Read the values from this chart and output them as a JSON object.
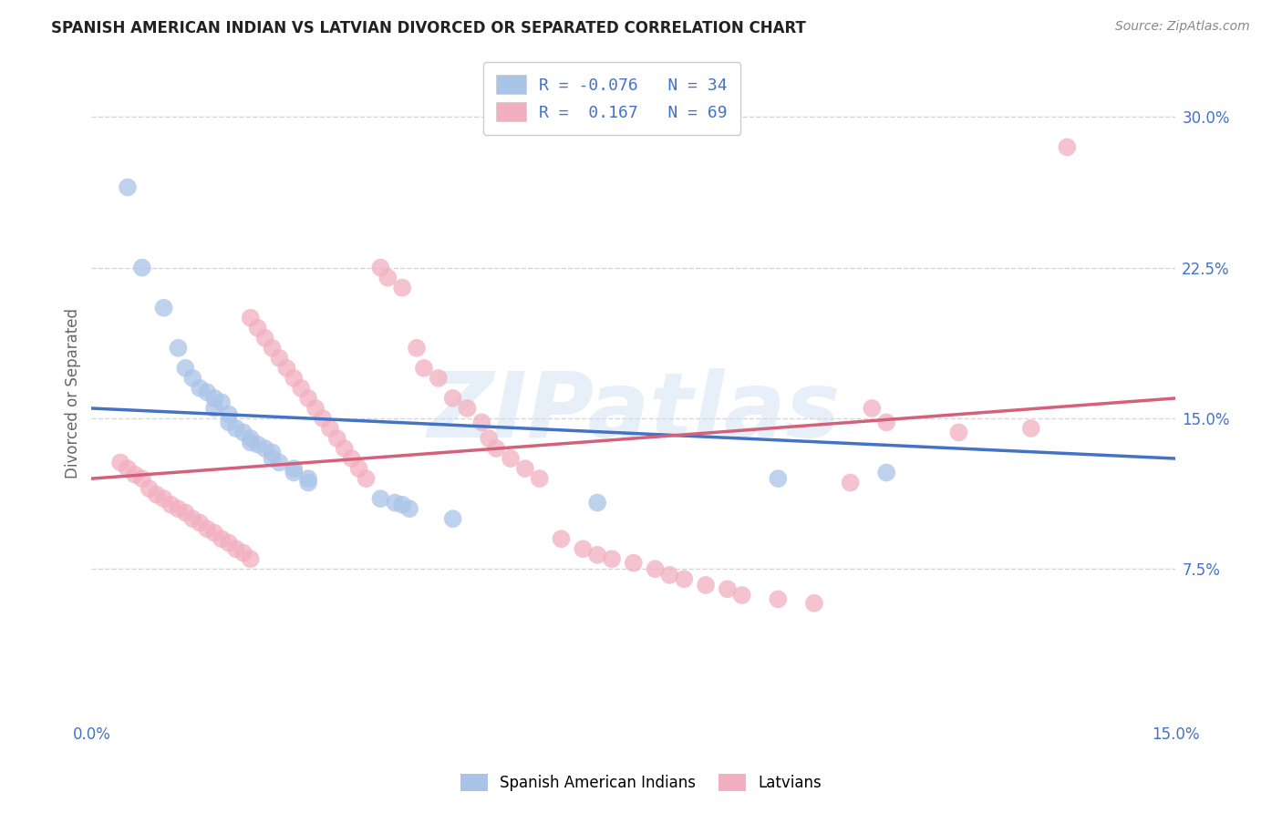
{
  "title": "SPANISH AMERICAN INDIAN VS LATVIAN DIVORCED OR SEPARATED CORRELATION CHART",
  "source": "Source: ZipAtlas.com",
  "ylabel": "Divorced or Separated",
  "watermark": "ZIPatlas",
  "legend_blue_label": "Spanish American Indians",
  "legend_pink_label": "Latvians",
  "R_blue": -0.076,
  "N_blue": 34,
  "R_pink": 0.167,
  "N_pink": 69,
  "blue_color": "#aac4e8",
  "pink_color": "#f2afc0",
  "blue_line_color": "#4472c4",
  "pink_line_color": "#d4607a",
  "blue_scatter": [
    [
      0.005,
      0.265
    ],
    [
      0.007,
      0.225
    ],
    [
      0.01,
      0.205
    ],
    [
      0.012,
      0.185
    ],
    [
      0.013,
      0.175
    ],
    [
      0.014,
      0.17
    ],
    [
      0.015,
      0.165
    ],
    [
      0.016,
      0.163
    ],
    [
      0.017,
      0.16
    ],
    [
      0.017,
      0.155
    ],
    [
      0.018,
      0.158
    ],
    [
      0.019,
      0.152
    ],
    [
      0.019,
      0.148
    ],
    [
      0.02,
      0.145
    ],
    [
      0.021,
      0.143
    ],
    [
      0.022,
      0.14
    ],
    [
      0.022,
      0.138
    ],
    [
      0.023,
      0.137
    ],
    [
      0.024,
      0.135
    ],
    [
      0.025,
      0.133
    ],
    [
      0.025,
      0.13
    ],
    [
      0.026,
      0.128
    ],
    [
      0.028,
      0.125
    ],
    [
      0.028,
      0.123
    ],
    [
      0.03,
      0.12
    ],
    [
      0.03,
      0.118
    ],
    [
      0.04,
      0.11
    ],
    [
      0.042,
      0.108
    ],
    [
      0.043,
      0.107
    ],
    [
      0.044,
      0.105
    ],
    [
      0.05,
      0.1
    ],
    [
      0.07,
      0.108
    ],
    [
      0.095,
      0.12
    ],
    [
      0.11,
      0.123
    ]
  ],
  "pink_scatter": [
    [
      0.004,
      0.128
    ],
    [
      0.005,
      0.125
    ],
    [
      0.006,
      0.122
    ],
    [
      0.007,
      0.12
    ],
    [
      0.008,
      0.115
    ],
    [
      0.009,
      0.112
    ],
    [
      0.01,
      0.11
    ],
    [
      0.011,
      0.107
    ],
    [
      0.012,
      0.105
    ],
    [
      0.013,
      0.103
    ],
    [
      0.014,
      0.1
    ],
    [
      0.015,
      0.098
    ],
    [
      0.016,
      0.095
    ],
    [
      0.017,
      0.093
    ],
    [
      0.018,
      0.09
    ],
    [
      0.019,
      0.088
    ],
    [
      0.02,
      0.085
    ],
    [
      0.021,
      0.083
    ],
    [
      0.022,
      0.08
    ],
    [
      0.022,
      0.2
    ],
    [
      0.023,
      0.195
    ],
    [
      0.024,
      0.19
    ],
    [
      0.025,
      0.185
    ],
    [
      0.026,
      0.18
    ],
    [
      0.027,
      0.175
    ],
    [
      0.028,
      0.17
    ],
    [
      0.029,
      0.165
    ],
    [
      0.03,
      0.16
    ],
    [
      0.031,
      0.155
    ],
    [
      0.032,
      0.15
    ],
    [
      0.033,
      0.145
    ],
    [
      0.034,
      0.14
    ],
    [
      0.035,
      0.135
    ],
    [
      0.036,
      0.13
    ],
    [
      0.037,
      0.125
    ],
    [
      0.038,
      0.12
    ],
    [
      0.04,
      0.225
    ],
    [
      0.041,
      0.22
    ],
    [
      0.043,
      0.215
    ],
    [
      0.045,
      0.185
    ],
    [
      0.046,
      0.175
    ],
    [
      0.048,
      0.17
    ],
    [
      0.05,
      0.16
    ],
    [
      0.052,
      0.155
    ],
    [
      0.054,
      0.148
    ],
    [
      0.055,
      0.14
    ],
    [
      0.056,
      0.135
    ],
    [
      0.058,
      0.13
    ],
    [
      0.06,
      0.125
    ],
    [
      0.062,
      0.12
    ],
    [
      0.065,
      0.09
    ],
    [
      0.068,
      0.085
    ],
    [
      0.07,
      0.082
    ],
    [
      0.072,
      0.08
    ],
    [
      0.075,
      0.078
    ],
    [
      0.078,
      0.075
    ],
    [
      0.08,
      0.072
    ],
    [
      0.082,
      0.07
    ],
    [
      0.085,
      0.067
    ],
    [
      0.088,
      0.065
    ],
    [
      0.09,
      0.062
    ],
    [
      0.095,
      0.06
    ],
    [
      0.1,
      0.058
    ],
    [
      0.105,
      0.118
    ],
    [
      0.108,
      0.155
    ],
    [
      0.11,
      0.148
    ],
    [
      0.12,
      0.143
    ],
    [
      0.13,
      0.145
    ],
    [
      0.135,
      0.285
    ]
  ],
  "xmin": 0.0,
  "xmax": 0.15,
  "ymin": 0.0,
  "ymax": 0.325,
  "yticks": [
    0.075,
    0.15,
    0.225,
    0.3
  ],
  "ytick_labels": [
    "7.5%",
    "15.0%",
    "22.5%",
    "30.0%"
  ],
  "background_color": "#ffffff",
  "grid_color": "#cccccc"
}
